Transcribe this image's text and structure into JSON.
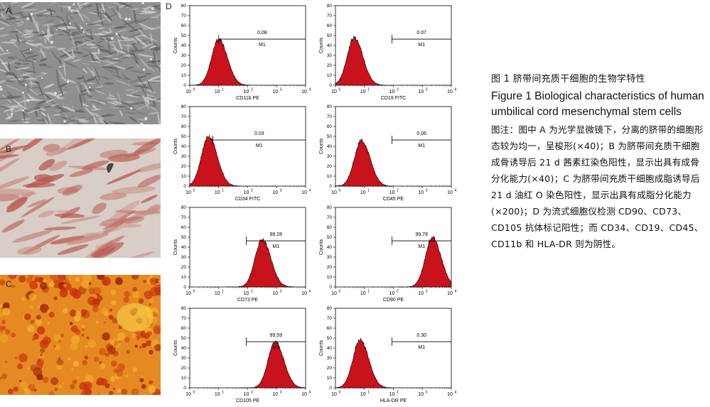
{
  "panels": {
    "a": {
      "label": "A"
    },
    "b": {
      "label": "B"
    },
    "c": {
      "label": "C"
    },
    "d": {
      "label": "D"
    }
  },
  "histograms": [
    {
      "marker": "CD11b PE",
      "gate_label": "M1",
      "percent": "0.08",
      "peak_log10": 1.0,
      "gate_from_log10": 1.0
    },
    {
      "marker": "CD19 FITC",
      "gate_label": "M1",
      "percent": "0.07",
      "peak_log10": 0.65,
      "gate_from_log10": 1.95
    },
    {
      "marker": "CD34 FITC",
      "gate_label": "M1",
      "percent": "0.03",
      "peak_log10": 0.65,
      "gate_from_log10": 0.8
    },
    {
      "marker": "CD45 PE",
      "gate_label": "M1",
      "percent": "0.06",
      "peak_log10": 0.9,
      "gate_from_log10": 1.95
    },
    {
      "marker": "CD73 PE",
      "gate_label": "M1",
      "percent": "99.28",
      "peak_log10": 2.5,
      "gate_from_log10": 1.95
    },
    {
      "marker": "CD90 PE",
      "gate_label": "M1",
      "percent": "99.78",
      "peak_log10": 3.35,
      "gate_from_log10": 1.95
    },
    {
      "marker": "CD105 PE",
      "gate_label": "M1",
      "percent": "99.59",
      "peak_log10": 2.95,
      "gate_from_log10": 1.95
    },
    {
      "marker": "HLA-DR PE",
      "gate_label": "M1",
      "percent": "0.30",
      "peak_log10": 0.85,
      "gate_from_log10": 1.95
    }
  ],
  "axes": {
    "ylabel": "Counts",
    "yticks": [
      "0",
      "10",
      "20",
      "30",
      "40",
      "50",
      "60",
      "70",
      "80"
    ],
    "xticks": [
      "10",
      "10",
      "10",
      "10",
      "10"
    ],
    "xtick_exponents": [
      "0",
      "1",
      "2",
      "3",
      "4"
    ]
  },
  "caption": {
    "title_cn": "图 1   脐带间充质干细胞的生物学特性",
    "title_en": "Figure 1    Biological characteristics of human umbilical cord mesenchymal stem cells",
    "note": "图注：图中 A 为光学显微镜下，分离的脐带的细胞形态较为均一，呈梭形(×40)；B 为脐带间充质干细胞成骨诱导后 21 d 茜素红染色阳性，显示出具有成骨分化能力(×40)；C 为脐带间充质干细胞成脂诱导后 21 d 油红 O 染色阳性，显示出具有成脂分化能力(×200)；D 为流式细胞仪检测 CD90、CD73、CD105 抗体标记阳性；而 CD34、CD19、CD45、CD11b 和 HLA-DR 则为阴性。"
  },
  "colors": {
    "histogram_fill": "#c8121c",
    "stain_osteo": "#b5473f",
    "stain_adipo": "#d9420f"
  }
}
